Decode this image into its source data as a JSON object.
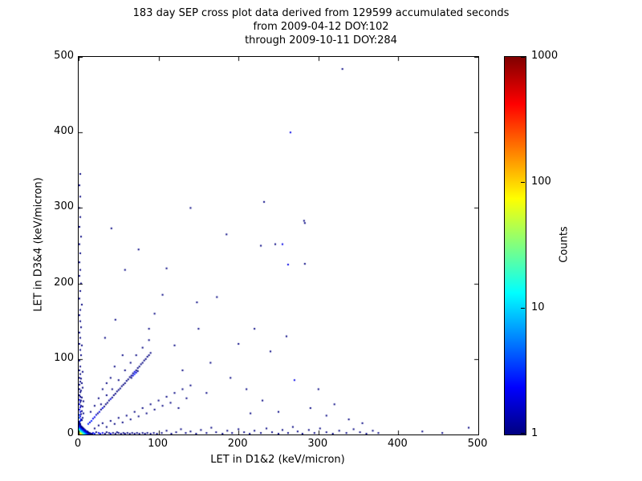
{
  "title_lines": [
    "183 day SEP cross plot data derived from 129599 accumulated seconds",
    "from 2009-04-12 DOY:102",
    "through 2009-10-11 DOY:284"
  ],
  "chart_data": {
    "type": "scatter",
    "title": "183 day SEP cross plot data derived from 129599 accumulated seconds from 2009-04-12 DOY:102 through 2009-10-11 DOY:284",
    "xlabel": "LET in D1&2 (keV/micron)",
    "ylabel": "LET in D3&4 (keV/micron)",
    "xlim": [
      0,
      500
    ],
    "ylim": [
      0,
      500
    ],
    "xticks": [
      0,
      100,
      200,
      300,
      400,
      500
    ],
    "yticks": [
      0,
      100,
      200,
      300,
      400,
      500
    ],
    "grid": false,
    "legend": "none",
    "colorbar": {
      "label": "Counts",
      "scale": "log",
      "range": [
        1,
        1000
      ],
      "ticks": [
        1,
        10,
        100,
        1000
      ],
      "colormap": "jet"
    },
    "point_fields": [
      "x_let_d12",
      "y_let_d34",
      "counts"
    ],
    "points": [
      [
        1,
        1,
        150
      ],
      [
        2,
        1,
        120
      ],
      [
        1,
        2,
        110
      ],
      [
        2,
        2,
        90
      ],
      [
        3,
        1,
        100
      ],
      [
        1,
        3,
        70
      ],
      [
        3,
        2,
        75
      ],
      [
        2,
        3,
        60
      ],
      [
        4,
        1,
        60
      ],
      [
        1,
        4,
        45
      ],
      [
        3,
        3,
        45
      ],
      [
        4,
        2,
        50
      ],
      [
        2,
        4,
        35
      ],
      [
        5,
        1,
        40
      ],
      [
        1,
        5,
        30
      ],
      [
        4,
        3,
        30
      ],
      [
        3,
        4,
        25
      ],
      [
        5,
        2,
        30
      ],
      [
        2,
        5,
        22
      ],
      [
        6,
        1,
        25
      ],
      [
        1,
        6,
        20
      ],
      [
        5,
        3,
        20
      ],
      [
        4,
        4,
        19
      ],
      [
        3,
        5,
        15
      ],
      [
        6,
        2,
        20
      ],
      [
        2,
        6,
        15
      ],
      [
        7,
        1,
        18
      ],
      [
        1,
        7,
        14
      ],
      [
        6,
        3,
        13
      ],
      [
        5,
        4,
        12
      ],
      [
        4,
        5,
        11
      ],
      [
        3,
        6,
        10
      ],
      [
        7,
        2,
        14
      ],
      [
        2,
        7,
        10
      ],
      [
        8,
        1,
        12
      ],
      [
        1,
        8,
        9
      ],
      [
        7,
        3,
        8
      ],
      [
        6,
        4,
        8
      ],
      [
        5,
        5,
        8
      ],
      [
        4,
        6,
        7
      ],
      [
        3,
        7,
        6
      ],
      [
        8,
        2,
        9
      ],
      [
        2,
        8,
        7
      ],
      [
        9,
        1,
        8
      ],
      [
        1,
        9,
        6
      ],
      [
        8,
        3,
        6
      ],
      [
        7,
        4,
        5
      ],
      [
        6,
        5,
        5
      ],
      [
        5,
        6,
        5
      ],
      [
        4,
        7,
        4
      ],
      [
        3,
        8,
        4
      ],
      [
        9,
        2,
        6
      ],
      [
        2,
        9,
        5
      ],
      [
        10,
        1,
        6
      ],
      [
        1,
        10,
        4
      ],
      [
        9,
        3,
        4
      ],
      [
        8,
        4,
        4
      ],
      [
        7,
        5,
        3
      ],
      [
        6,
        6,
        3
      ],
      [
        5,
        7,
        3
      ],
      [
        4,
        8,
        3
      ],
      [
        3,
        9,
        3
      ],
      [
        10,
        2,
        4
      ],
      [
        2,
        10,
        3
      ],
      [
        11,
        1,
        4
      ],
      [
        1,
        11,
        3
      ],
      [
        10,
        3,
        3
      ],
      [
        9,
        4,
        2
      ],
      [
        8,
        5,
        2
      ],
      [
        7,
        6,
        2
      ],
      [
        6,
        7,
        2
      ],
      [
        5,
        8,
        2
      ],
      [
        4,
        9,
        2
      ],
      [
        3,
        10,
        2
      ],
      [
        11,
        2,
        3
      ],
      [
        2,
        11,
        2
      ],
      [
        12,
        1,
        3
      ],
      [
        1,
        12,
        2
      ],
      [
        11,
        3,
        2
      ],
      [
        10,
        4,
        2
      ],
      [
        9,
        5,
        2
      ],
      [
        8,
        6,
        1
      ],
      [
        7,
        7,
        2
      ],
      [
        6,
        8,
        1
      ],
      [
        5,
        9,
        1
      ],
      [
        4,
        10,
        1
      ],
      [
        3,
        11,
        1
      ],
      [
        12,
        2,
        2
      ],
      [
        2,
        12,
        2
      ],
      [
        13,
        1,
        2
      ],
      [
        1,
        13,
        2
      ],
      [
        12,
        3,
        1
      ],
      [
        11,
        4,
        1
      ],
      [
        13,
        2,
        1
      ],
      [
        2,
        13,
        1
      ],
      [
        14,
        1,
        2
      ],
      [
        1,
        14,
        1
      ],
      [
        14,
        2,
        1
      ],
      [
        2,
        14,
        1
      ],
      [
        15,
        1,
        1
      ],
      [
        1,
        15,
        1
      ],
      [
        16,
        1,
        1
      ],
      [
        1,
        16,
        1
      ],
      [
        17,
        1,
        1
      ],
      [
        1,
        17,
        1
      ],
      [
        2,
        18,
        3
      ],
      [
        3,
        20,
        2
      ],
      [
        1,
        22,
        4
      ],
      [
        4,
        19,
        1
      ],
      [
        2,
        24,
        2
      ],
      [
        5,
        22,
        1
      ],
      [
        1,
        26,
        3
      ],
      [
        3,
        27,
        1
      ],
      [
        2,
        30,
        2
      ],
      [
        6,
        28,
        1
      ],
      [
        1,
        33,
        2
      ],
      [
        4,
        31,
        1
      ],
      [
        2,
        36,
        2
      ],
      [
        3,
        38,
        1
      ],
      [
        1,
        40,
        2
      ],
      [
        5,
        37,
        1
      ],
      [
        2,
        43,
        1
      ],
      [
        1,
        46,
        2
      ],
      [
        3,
        45,
        1
      ],
      [
        6,
        44,
        1
      ],
      [
        2,
        50,
        1
      ],
      [
        1,
        52,
        1
      ],
      [
        4,
        49,
        1
      ],
      [
        2,
        56,
        1
      ],
      [
        1,
        60,
        1
      ],
      [
        3,
        58,
        1
      ],
      [
        5,
        62,
        1
      ],
      [
        1,
        66,
        1
      ],
      [
        2,
        70,
        1
      ],
      [
        4,
        68,
        1
      ],
      [
        1,
        75,
        1
      ],
      [
        3,
        74,
        1
      ],
      [
        2,
        80,
        1
      ],
      [
        1,
        85,
        1
      ],
      [
        5,
        83,
        1
      ],
      [
        2,
        90,
        1
      ],
      [
        1,
        98,
        1
      ],
      [
        3,
        105,
        1
      ],
      [
        2,
        112,
        1
      ],
      [
        1,
        120,
        1
      ],
      [
        4,
        118,
        1
      ],
      [
        2,
        128,
        1
      ],
      [
        1,
        135,
        1
      ],
      [
        3,
        142,
        1
      ],
      [
        2,
        150,
        1
      ],
      [
        1,
        158,
        1
      ],
      [
        2,
        165,
        1
      ],
      [
        4,
        172,
        1
      ],
      [
        1,
        180,
        1
      ],
      [
        2,
        190,
        1
      ],
      [
        3,
        200,
        1
      ],
      [
        1,
        210,
        1
      ],
      [
        2,
        218,
        1
      ],
      [
        1,
        228,
        1
      ],
      [
        2,
        240,
        1
      ],
      [
        1,
        252,
        1
      ],
      [
        3,
        262,
        1
      ],
      [
        1,
        275,
        1
      ],
      [
        2,
        288,
        1
      ],
      [
        1,
        300,
        1
      ],
      [
        2,
        315,
        1
      ],
      [
        1,
        330,
        1
      ],
      [
        2,
        345,
        1
      ],
      [
        18,
        2,
        2
      ],
      [
        20,
        1,
        3
      ],
      [
        22,
        3,
        1
      ],
      [
        25,
        2,
        2
      ],
      [
        27,
        1,
        2
      ],
      [
        30,
        2,
        2
      ],
      [
        33,
        1,
        1
      ],
      [
        35,
        3,
        1
      ],
      [
        38,
        2,
        1
      ],
      [
        40,
        1,
        2
      ],
      [
        43,
        2,
        1
      ],
      [
        46,
        1,
        1
      ],
      [
        48,
        3,
        1
      ],
      [
        50,
        2,
        1
      ],
      [
        53,
        1,
        1
      ],
      [
        56,
        2,
        1
      ],
      [
        58,
        1,
        1
      ],
      [
        61,
        2,
        1
      ],
      [
        64,
        1,
        1
      ],
      [
        67,
        2,
        1
      ],
      [
        70,
        1,
        1
      ],
      [
        73,
        2,
        1
      ],
      [
        76,
        1,
        1
      ],
      [
        80,
        2,
        1
      ],
      [
        83,
        1,
        1
      ],
      [
        86,
        2,
        1
      ],
      [
        90,
        1,
        1
      ],
      [
        94,
        2,
        1
      ],
      [
        98,
        1,
        1
      ],
      [
        104,
        2,
        1
      ],
      [
        110,
        5,
        1
      ],
      [
        116,
        1,
        1
      ],
      [
        122,
        3,
        1
      ],
      [
        128,
        7,
        1
      ],
      [
        134,
        2,
        1
      ],
      [
        140,
        4,
        1
      ],
      [
        147,
        1,
        1
      ],
      [
        153,
        6,
        1
      ],
      [
        160,
        2,
        1
      ],
      [
        166,
        9,
        1
      ],
      [
        172,
        3,
        1
      ],
      [
        180,
        1,
        1
      ],
      [
        186,
        5,
        1
      ],
      [
        192,
        2,
        1
      ],
      [
        200,
        7,
        1
      ],
      [
        207,
        3,
        1
      ],
      [
        214,
        1,
        1
      ],
      [
        220,
        5,
        1
      ],
      [
        228,
        2,
        1
      ],
      [
        235,
        8,
        1
      ],
      [
        242,
        3,
        1
      ],
      [
        250,
        1,
        1
      ],
      [
        255,
        6,
        1
      ],
      [
        262,
        2,
        1
      ],
      [
        268,
        10,
        1
      ],
      [
        274,
        4,
        1
      ],
      [
        280,
        1,
        1
      ],
      [
        288,
        6,
        1
      ],
      [
        295,
        2,
        1
      ],
      [
        302,
        8,
        1
      ],
      [
        310,
        3,
        1
      ],
      [
        318,
        1,
        1
      ],
      [
        326,
        5,
        1
      ],
      [
        335,
        2,
        1
      ],
      [
        344,
        7,
        1
      ],
      [
        352,
        3,
        1
      ],
      [
        360,
        1,
        1
      ],
      [
        368,
        5,
        1
      ],
      [
        375,
        2,
        1
      ],
      [
        430,
        4,
        1
      ],
      [
        455,
        2,
        1
      ],
      [
        488,
        9,
        1
      ],
      [
        12,
        14,
        3
      ],
      [
        14,
        16,
        2
      ],
      [
        16,
        18,
        3
      ],
      [
        18,
        21,
        2
      ],
      [
        20,
        23,
        2
      ],
      [
        22,
        26,
        2
      ],
      [
        24,
        28,
        1
      ],
      [
        26,
        30,
        2
      ],
      [
        28,
        33,
        1
      ],
      [
        30,
        35,
        2
      ],
      [
        32,
        37,
        1
      ],
      [
        34,
        40,
        1
      ],
      [
        36,
        42,
        1
      ],
      [
        38,
        45,
        1
      ],
      [
        40,
        47,
        2
      ],
      [
        42,
        49,
        1
      ],
      [
        44,
        52,
        1
      ],
      [
        46,
        54,
        1
      ],
      [
        48,
        57,
        1
      ],
      [
        50,
        59,
        1
      ],
      [
        52,
        61,
        1
      ],
      [
        54,
        64,
        1
      ],
      [
        56,
        66,
        1
      ],
      [
        58,
        68,
        1
      ],
      [
        60,
        71,
        1
      ],
      [
        62,
        73,
        1
      ],
      [
        64,
        76,
        1
      ],
      [
        66,
        78,
        1
      ],
      [
        68,
        81,
        1
      ],
      [
        70,
        83,
        2
      ],
      [
        72,
        85,
        1
      ],
      [
        74,
        88,
        1
      ],
      [
        76,
        90,
        1
      ],
      [
        78,
        93,
        1
      ],
      [
        80,
        95,
        1
      ],
      [
        82,
        98,
        1
      ],
      [
        84,
        100,
        1
      ],
      [
        86,
        103,
        1
      ],
      [
        88,
        105,
        1
      ],
      [
        90,
        108,
        1
      ],
      [
        70,
        80,
        3
      ],
      [
        72,
        82,
        2
      ],
      [
        68,
        78,
        2
      ],
      [
        74,
        84,
        1
      ],
      [
        66,
        75,
        1
      ],
      [
        20,
        8,
        1
      ],
      [
        25,
        12,
        1
      ],
      [
        30,
        15,
        1
      ],
      [
        35,
        10,
        1
      ],
      [
        40,
        18,
        1
      ],
      [
        45,
        14,
        1
      ],
      [
        50,
        22,
        1
      ],
      [
        55,
        16,
        1
      ],
      [
        60,
        25,
        1
      ],
      [
        65,
        20,
        1
      ],
      [
        70,
        30,
        1
      ],
      [
        75,
        24,
        1
      ],
      [
        80,
        35,
        1
      ],
      [
        85,
        28,
        1
      ],
      [
        90,
        40,
        1
      ],
      [
        95,
        33,
        1
      ],
      [
        100,
        45,
        1
      ],
      [
        105,
        38,
        1
      ],
      [
        110,
        50,
        1
      ],
      [
        115,
        42,
        1
      ],
      [
        120,
        55,
        1
      ],
      [
        125,
        35,
        1
      ],
      [
        130,
        60,
        1
      ],
      [
        135,
        48,
        1
      ],
      [
        140,
        65,
        1
      ],
      [
        28,
        40,
        1
      ],
      [
        35,
        52,
        1
      ],
      [
        42,
        60,
        1
      ],
      [
        50,
        72,
        1
      ],
      [
        58,
        85,
        1
      ],
      [
        65,
        95,
        1
      ],
      [
        72,
        105,
        1
      ],
      [
        80,
        115,
        1
      ],
      [
        88,
        125,
        1
      ],
      [
        30,
        60,
        1
      ],
      [
        25,
        48,
        1
      ],
      [
        20,
        38,
        1
      ],
      [
        15,
        30,
        1
      ],
      [
        45,
        90,
        1
      ],
      [
        55,
        105,
        1
      ],
      [
        40,
        75,
        1
      ],
      [
        35,
        68,
        1
      ],
      [
        41,
        273,
        1
      ],
      [
        140,
        300,
        1
      ],
      [
        232,
        308,
        1
      ],
      [
        185,
        265,
        1
      ],
      [
        265,
        400,
        2
      ],
      [
        228,
        250,
        1
      ],
      [
        255,
        252,
        2
      ],
      [
        282,
        283,
        1
      ],
      [
        262,
        225,
        2
      ],
      [
        283,
        226,
        1
      ],
      [
        148,
        175,
        1
      ],
      [
        173,
        182,
        1
      ],
      [
        110,
        220,
        1
      ],
      [
        120,
        118,
        1
      ],
      [
        150,
        140,
        1
      ],
      [
        165,
        95,
        1
      ],
      [
        190,
        75,
        1
      ],
      [
        210,
        60,
        1
      ],
      [
        230,
        45,
        1
      ],
      [
        250,
        30,
        1
      ],
      [
        270,
        72,
        2
      ],
      [
        290,
        35,
        1
      ],
      [
        310,
        25,
        1
      ],
      [
        95,
        160,
        1
      ],
      [
        105,
        185,
        1
      ],
      [
        130,
        85,
        1
      ],
      [
        160,
        55,
        1
      ],
      [
        200,
        120,
        1
      ],
      [
        220,
        140,
        1
      ],
      [
        240,
        110,
        1
      ],
      [
        260,
        130,
        1
      ],
      [
        215,
        28,
        1
      ],
      [
        58,
        218,
        1
      ],
      [
        75,
        245,
        1
      ],
      [
        88,
        140,
        1
      ],
      [
        46,
        152,
        1
      ],
      [
        33,
        128,
        1
      ],
      [
        300,
        60,
        1
      ],
      [
        320,
        40,
        1
      ],
      [
        338,
        20,
        1
      ],
      [
        355,
        15,
        1
      ],
      [
        330,
        484,
        1
      ],
      [
        283,
        280,
        1
      ],
      [
        246,
        252,
        1
      ]
    ]
  }
}
